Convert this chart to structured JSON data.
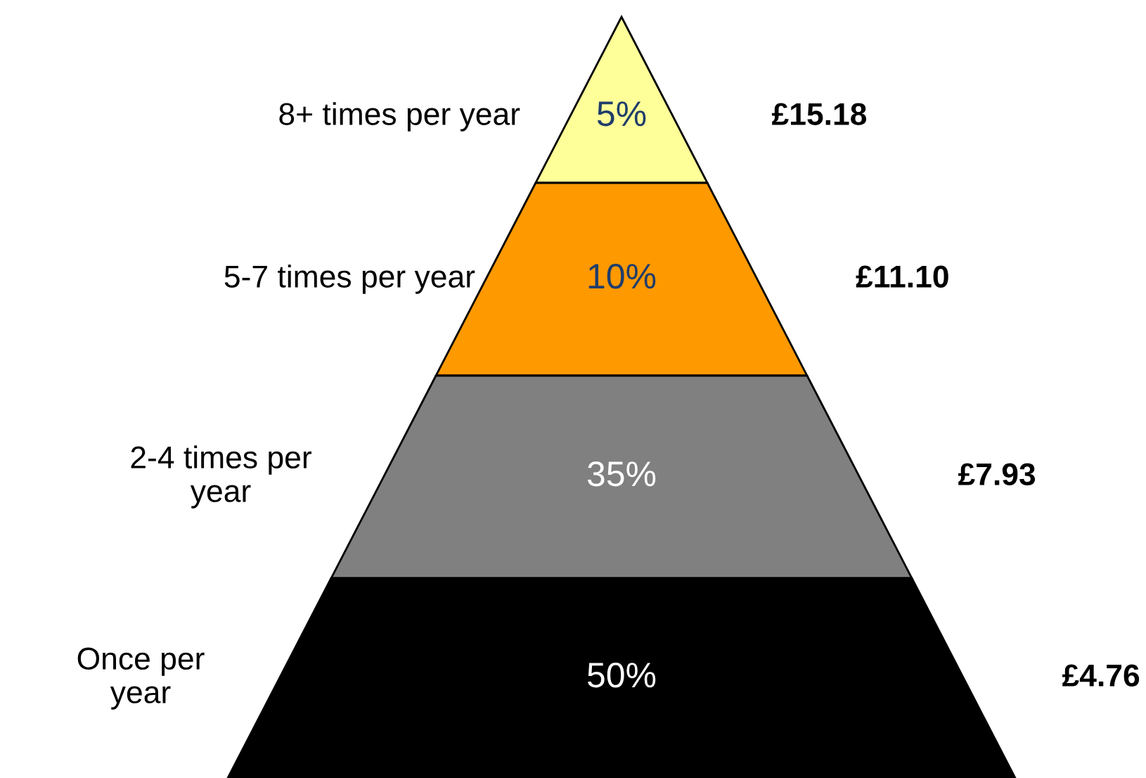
{
  "chart_data": {
    "type": "other",
    "categories": [
      "8+ times per year",
      "5-7 times per year",
      "2-4 times per\nyear",
      "Once per\nyear"
    ],
    "values": [
      5,
      10,
      35,
      50
    ],
    "colors": [
      "#ffff99",
      "#ff9900",
      "#808080",
      "#000000"
    ],
    "value_labels": [
      "5%",
      "10%",
      "35%",
      "50%"
    ],
    "annotations": [
      "£15.18",
      "£11.10",
      "£7.93",
      "£4.76"
    ]
  }
}
